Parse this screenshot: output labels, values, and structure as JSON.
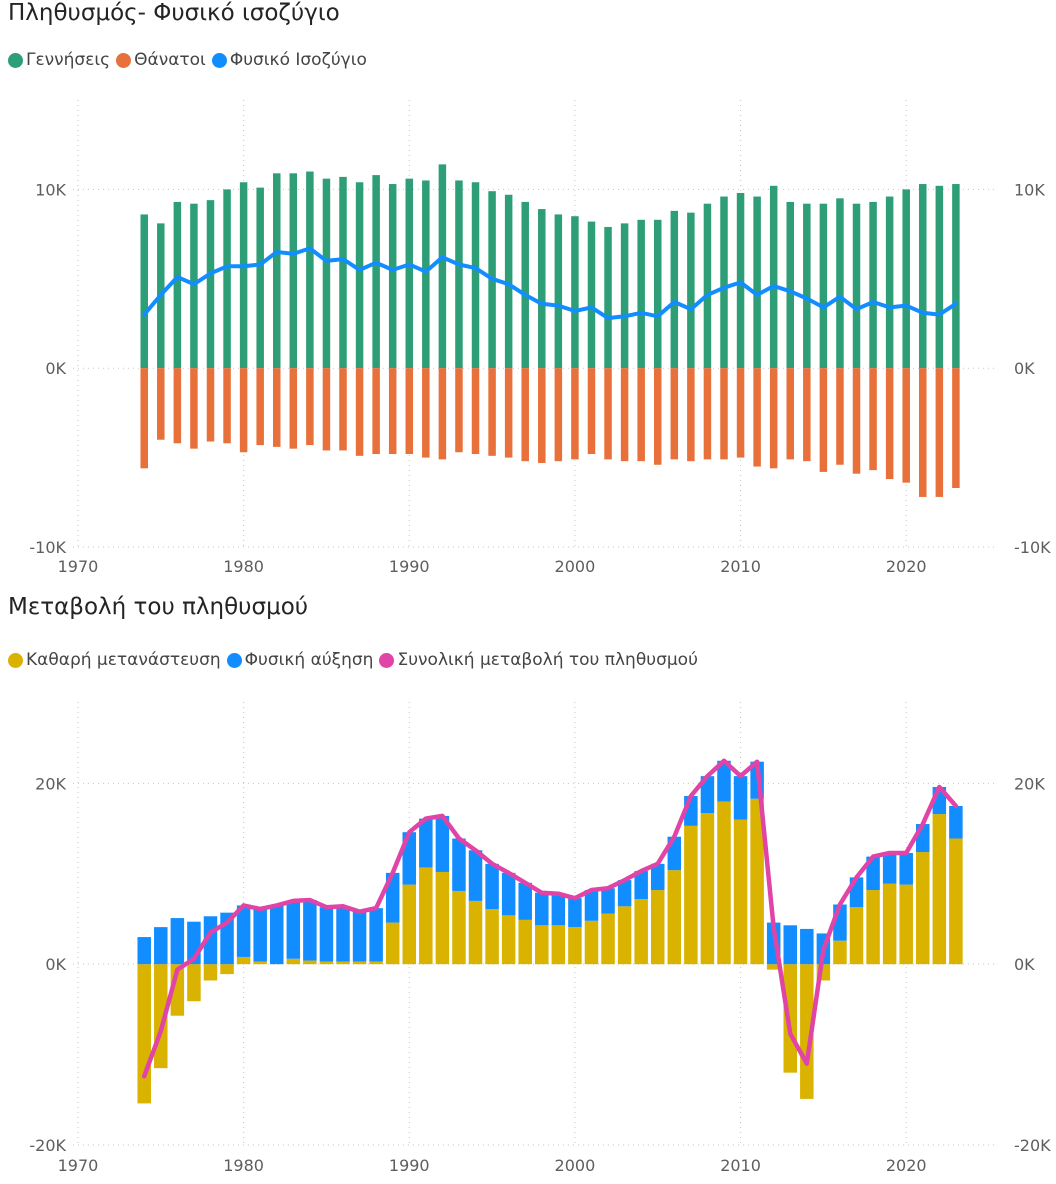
{
  "chart_data": [
    {
      "type": "bar",
      "title": "Πληθυσμός- Φυσικό ισοζύγιο",
      "xlabel": "",
      "ylabel": "",
      "x_ticks": [
        "1970",
        "1980",
        "1990",
        "2000",
        "2010",
        "2020"
      ],
      "x_tick_values": [
        1970,
        1980,
        1990,
        2000,
        2010,
        2020
      ],
      "xlim": [
        1969.7,
        2025.3
      ],
      "y_ticks": [
        "-10K",
        "0K",
        "10K"
      ],
      "y_tick_values": [
        -10000,
        0,
        10000
      ],
      "ylim": [
        -10000,
        15000
      ],
      "grid": true,
      "legend_position": "top-left",
      "x": [
        1974,
        1975,
        1976,
        1977,
        1978,
        1979,
        1980,
        1981,
        1982,
        1983,
        1984,
        1985,
        1986,
        1987,
        1988,
        1989,
        1990,
        1991,
        1992,
        1993,
        1994,
        1995,
        1996,
        1997,
        1998,
        1999,
        2000,
        2001,
        2002,
        2003,
        2004,
        2005,
        2006,
        2007,
        2008,
        2009,
        2010,
        2011,
        2012,
        2013,
        2014,
        2015,
        2016,
        2017,
        2018,
        2019,
        2020,
        2021,
        2022,
        2023
      ],
      "series": [
        {
          "name": "Γεννήσεις",
          "kind": "bar",
          "color": "#2e9e76",
          "values": [
            8600,
            8100,
            9300,
            9200,
            9400,
            10000,
            10400,
            10100,
            10900,
            10900,
            11000,
            10600,
            10700,
            10400,
            10800,
            10300,
            10600,
            10500,
            11400,
            10500,
            10400,
            9900,
            9700,
            9300,
            8900,
            8600,
            8500,
            8200,
            7900,
            8100,
            8300,
            8300,
            8800,
            8700,
            9200,
            9600,
            9800,
            9600,
            10200,
            9300,
            9200,
            9200,
            9500,
            9200,
            9300,
            9600,
            10000,
            10300,
            10200,
            10300
          ]
        },
        {
          "name": "Θάνατοι",
          "kind": "bar",
          "color": "#e8703a",
          "values": [
            -5600,
            -4000,
            -4200,
            -4500,
            -4100,
            -4200,
            -4700,
            -4300,
            -4400,
            -4500,
            -4300,
            -4600,
            -4600,
            -4900,
            -4800,
            -4800,
            -4800,
            -5000,
            -5100,
            -4700,
            -4800,
            -4900,
            -5000,
            -5200,
            -5300,
            -5200,
            -5100,
            -4800,
            -5100,
            -5200,
            -5200,
            -5400,
            -5100,
            -5200,
            -5100,
            -5100,
            -5000,
            -5500,
            -5600,
            -5100,
            -5200,
            -5800,
            -5400,
            -5900,
            -5700,
            -6200,
            -6400,
            -7200,
            -7200,
            -6700
          ]
        },
        {
          "name": "Φυσικό Ισοζύγιο",
          "kind": "line",
          "color": "#118dff",
          "values": [
            3000,
            4100,
            5100,
            4700,
            5300,
            5700,
            5700,
            5800,
            6500,
            6400,
            6700,
            6000,
            6100,
            5500,
            5900,
            5500,
            5800,
            5400,
            6200,
            5800,
            5600,
            5000,
            4700,
            4100,
            3600,
            3500,
            3200,
            3400,
            2800,
            2900,
            3100,
            2900,
            3700,
            3300,
            4100,
            4500,
            4800,
            4100,
            4600,
            4300,
            3900,
            3400,
            4000,
            3300,
            3700,
            3400,
            3500,
            3100,
            3000,
            3600
          ]
        }
      ]
    },
    {
      "type": "bar",
      "title": "Μεταβολή του πληθυσμού",
      "xlabel": "",
      "ylabel": "",
      "x_ticks": [
        "1970",
        "1980",
        "1990",
        "2000",
        "2010",
        "2020"
      ],
      "x_tick_values": [
        1970,
        1980,
        1990,
        2000,
        2010,
        2020
      ],
      "xlim": [
        1969.7,
        2025.3
      ],
      "y_ticks": [
        "-20K",
        "0K",
        "20K"
      ],
      "y_tick_values": [
        -20000,
        0,
        20000
      ],
      "ylim": [
        -20000,
        29000
      ],
      "grid": true,
      "legend_position": "top-left",
      "x": [
        1974,
        1975,
        1976,
        1977,
        1978,
        1979,
        1980,
        1981,
        1982,
        1983,
        1984,
        1985,
        1986,
        1987,
        1988,
        1989,
        1990,
        1991,
        1992,
        1993,
        1994,
        1995,
        1996,
        1997,
        1998,
        1999,
        2000,
        2001,
        2002,
        2003,
        2004,
        2005,
        2006,
        2007,
        2008,
        2009,
        2010,
        2011,
        2012,
        2013,
        2014,
        2015,
        2016,
        2017,
        2018,
        2019,
        2020,
        2021,
        2022,
        2023
      ],
      "series": [
        {
          "name": "Καθαρή μετανάστευση",
          "kind": "stacked_bar",
          "color": "#d9b300",
          "values": [
            -15400,
            -11500,
            -5700,
            -4100,
            -1800,
            -1100,
            800,
            300,
            0,
            600,
            400,
            300,
            300,
            300,
            300,
            4600,
            8800,
            10700,
            10200,
            8100,
            7000,
            6100,
            5400,
            4900,
            4300,
            4300,
            4100,
            4800,
            5600,
            6400,
            7200,
            8200,
            10400,
            15300,
            16700,
            18000,
            16000,
            18300,
            -600,
            -12000,
            -14900,
            -1800,
            2600,
            6300,
            8200,
            8900,
            8800,
            12400,
            16600,
            13900
          ]
        },
        {
          "name": "Φυσική αύξηση",
          "kind": "stacked_bar",
          "color": "#118dff",
          "values": [
            3000,
            4100,
            5100,
            4700,
            5300,
            5700,
            5700,
            5800,
            6500,
            6400,
            6700,
            6000,
            6100,
            5500,
            5900,
            5500,
            5800,
            5400,
            6200,
            5800,
            5600,
            5000,
            4700,
            4100,
            3600,
            3500,
            3200,
            3400,
            2800,
            2900,
            3100,
            2900,
            3700,
            3300,
            4100,
            4500,
            4800,
            4100,
            4600,
            4300,
            3900,
            3400,
            4000,
            3300,
            3700,
            3400,
            3500,
            3100,
            3000,
            3600
          ]
        },
        {
          "name": "Συνολική μεταβολή του πληθυσμού",
          "kind": "line",
          "color": "#e044a7",
          "values": [
            -12400,
            -7400,
            -600,
            600,
            3500,
            4600,
            6500,
            6100,
            6500,
            7000,
            7100,
            6300,
            6400,
            5800,
            6200,
            10100,
            14600,
            16100,
            16400,
            13900,
            12600,
            11100,
            10100,
            9000,
            7900,
            7800,
            7300,
            8200,
            8400,
            9300,
            10300,
            11100,
            14100,
            18600,
            20800,
            22500,
            20800,
            22400,
            4000,
            -7700,
            -11000,
            1600,
            6600,
            9600,
            11900,
            12300,
            12300,
            15500,
            19600,
            17500
          ]
        }
      ]
    }
  ]
}
